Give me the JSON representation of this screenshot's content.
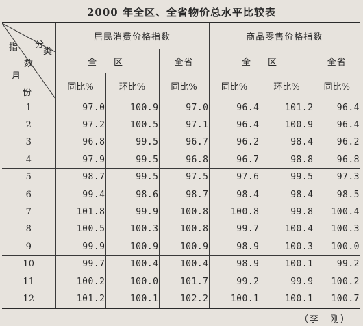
{
  "title": "2000 年全区、全省物价总水平比较表",
  "corner": {
    "category": "分 类",
    "index": "指 数",
    "month": "月 份",
    "index_first": "指",
    "index_second": "数",
    "category_first": "分",
    "category_second": "类",
    "month_first": "月",
    "month_second": "份"
  },
  "headers": {
    "cpi": "居民消费价格指数",
    "rpi": "商品零售价格指数",
    "region": "全　区",
    "province": "全省",
    "yoy": "同比%",
    "mom": "环比%"
  },
  "rows": [
    {
      "month": "1",
      "cpi_region_yoy": "97.0",
      "cpi_region_mom": "100.9",
      "cpi_prov_yoy": "97.0",
      "rpi_region_yoy": "96.4",
      "rpi_region_mom": "101.2",
      "rpi_prov_yoy": "96.4"
    },
    {
      "month": "2",
      "cpi_region_yoy": "97.2",
      "cpi_region_mom": "100.5",
      "cpi_prov_yoy": "97.1",
      "rpi_region_yoy": "96.4",
      "rpi_region_mom": "100.9",
      "rpi_prov_yoy": "96.4"
    },
    {
      "month": "3",
      "cpi_region_yoy": "96.8",
      "cpi_region_mom": "99.5",
      "cpi_prov_yoy": "96.7",
      "rpi_region_yoy": "96.2",
      "rpi_region_mom": "98.4",
      "rpi_prov_yoy": "96.2"
    },
    {
      "month": "4",
      "cpi_region_yoy": "97.9",
      "cpi_region_mom": "99.5",
      "cpi_prov_yoy": "96.8",
      "rpi_region_yoy": "96.7",
      "rpi_region_mom": "98.8",
      "rpi_prov_yoy": "96.8"
    },
    {
      "month": "5",
      "cpi_region_yoy": "98.7",
      "cpi_region_mom": "99.5",
      "cpi_prov_yoy": "97.5",
      "rpi_region_yoy": "97.6",
      "rpi_region_mom": "99.5",
      "rpi_prov_yoy": "97.3"
    },
    {
      "month": "6",
      "cpi_region_yoy": "99.4",
      "cpi_region_mom": "98.6",
      "cpi_prov_yoy": "98.7",
      "rpi_region_yoy": "98.4",
      "rpi_region_mom": "98.4",
      "rpi_prov_yoy": "98.5"
    },
    {
      "month": "7",
      "cpi_region_yoy": "101.8",
      "cpi_region_mom": "99.9",
      "cpi_prov_yoy": "100.8",
      "rpi_region_yoy": "100.8",
      "rpi_region_mom": "99.8",
      "rpi_prov_yoy": "100.4"
    },
    {
      "month": "8",
      "cpi_region_yoy": "100.5",
      "cpi_region_mom": "100.3",
      "cpi_prov_yoy": "100.8",
      "rpi_region_yoy": "99.7",
      "rpi_region_mom": "100.4",
      "rpi_prov_yoy": "100.3"
    },
    {
      "month": "9",
      "cpi_region_yoy": "99.9",
      "cpi_region_mom": "100.9",
      "cpi_prov_yoy": "100.9",
      "rpi_region_yoy": "98.9",
      "rpi_region_mom": "100.3",
      "rpi_prov_yoy": "100.0"
    },
    {
      "month": "10",
      "cpi_region_yoy": "99.7",
      "cpi_region_mom": "100.4",
      "cpi_prov_yoy": "100.4",
      "rpi_region_yoy": "98.9",
      "rpi_region_mom": "100.1",
      "rpi_prov_yoy": "99.2"
    },
    {
      "month": "11",
      "cpi_region_yoy": "100.2",
      "cpi_region_mom": "100.0",
      "cpi_prov_yoy": "101.7",
      "rpi_region_yoy": "99.2",
      "rpi_region_mom": "99.9",
      "rpi_prov_yoy": "100.2"
    },
    {
      "month": "12",
      "cpi_region_yoy": "101.2",
      "cpi_region_mom": "100.1",
      "cpi_prov_yoy": "102.2",
      "rpi_region_yoy": "100.1",
      "rpi_region_mom": "100.1",
      "rpi_prov_yoy": "100.7"
    }
  ],
  "author": "（李　刚）"
}
